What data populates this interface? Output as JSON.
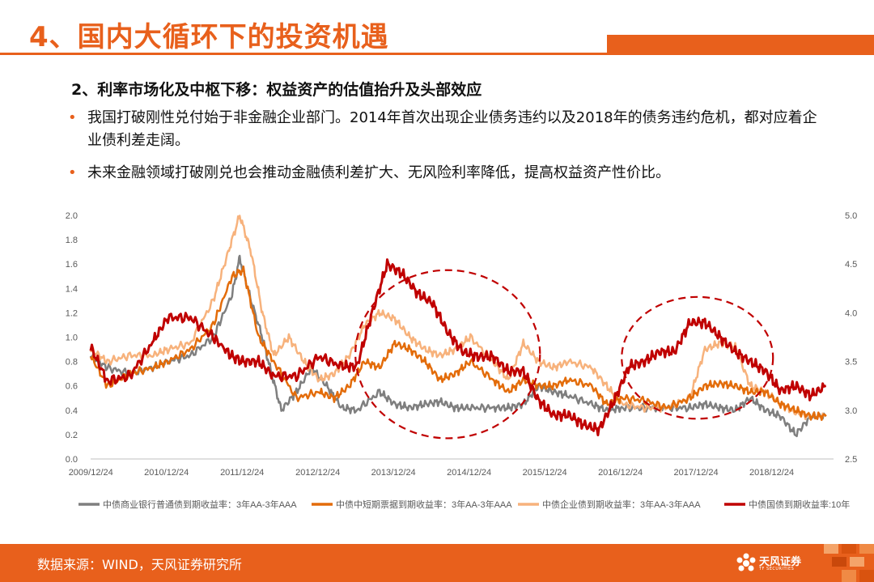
{
  "slide": {
    "title": "4、国内大循环下的投资机遇",
    "subtitle": "2、利率市场化及中枢下移：权益资产的估值抬升及头部效应",
    "bullets": [
      "我国打破刚性兑付始于非金融企业部门。2014年首次出现企业债务违约以及2018年的债务违约危机，都对应着企业债利差走阔。",
      "未来金融领域打破刚兑也会推动金融债利差扩大、无风险利率降低，提高权益资产性价比。"
    ],
    "source": "数据来源：WIND，天风证券研究所",
    "logo_text": "天风证券",
    "logo_sub": "TF SECURITIES",
    "colors": {
      "accent": "#e8601c",
      "gray": "#7f7f7f",
      "orange": "#e36c0a",
      "peach": "#f7b27c",
      "red": "#c00000"
    }
  },
  "chart_data": {
    "type": "line",
    "x_tick_labels": [
      "2009/12/24",
      "2010/12/24",
      "2011/12/24",
      "2012/12/24",
      "2013/12/24",
      "2014/12/24",
      "2015/12/24",
      "2016/12/24",
      "2017/12/24",
      "2018/12/24"
    ],
    "y_left_ticks": [
      "0.0",
      "0.2",
      "0.4",
      "0.6",
      "0.8",
      "1.0",
      "1.2",
      "1.4",
      "1.6",
      "1.8",
      "2.0"
    ],
    "y_right_ticks": [
      "2.5",
      "3.0",
      "3.5",
      "4.0",
      "4.5",
      "5.0"
    ],
    "ylim_left": [
      0,
      2.0
    ],
    "ylim_right": [
      2.5,
      5.0
    ],
    "xlim": [
      2009.98,
      2019.8
    ],
    "grid": false,
    "legend_position": "bottom",
    "annotations": [
      "dashed ellipse around 2013-2015 spread widening",
      "dashed ellipse around 2017-2018 spread widening"
    ],
    "ellipses": [
      {
        "cx": 2014.7,
        "cy_left": 0.86,
        "rx_years": 1.22,
        "ry": 0.69
      },
      {
        "cx": 2018.0,
        "cy_left": 0.83,
        "rx_years": 1.0,
        "ry": 0.5
      }
    ],
    "series": [
      {
        "name": "中债商业银行普通债到期收益率：3年AA-3年AAA",
        "axis": "left",
        "color": "#7f7f7f",
        "x": [
          2009.98,
          2010.2,
          2010.5,
          2010.8,
          2011.0,
          2011.3,
          2011.6,
          2011.85,
          2011.95,
          2012.1,
          2012.25,
          2012.35,
          2012.5,
          2012.7,
          2012.9,
          2013.1,
          2013.3,
          2013.5,
          2013.8,
          2014.0,
          2014.2,
          2014.4,
          2014.6,
          2014.8,
          2015.0,
          2015.3,
          2015.5,
          2015.7,
          2015.9,
          2016.1,
          2016.3,
          2016.6,
          2016.8,
          2017.0,
          2017.3,
          2017.6,
          2017.9,
          2018.1,
          2018.3,
          2018.5,
          2018.7,
          2018.9,
          2019.1,
          2019.3,
          2019.5,
          2019.7
        ],
        "values": [
          0.85,
          0.75,
          0.7,
          0.75,
          0.8,
          0.85,
          1.0,
          1.35,
          1.65,
          1.3,
          1.0,
          0.75,
          0.4,
          0.55,
          0.75,
          0.6,
          0.42,
          0.4,
          0.55,
          0.45,
          0.42,
          0.45,
          0.47,
          0.42,
          0.42,
          0.42,
          0.42,
          0.45,
          0.6,
          0.55,
          0.52,
          0.45,
          0.4,
          0.42,
          0.42,
          0.42,
          0.42,
          0.45,
          0.42,
          0.4,
          0.5,
          0.4,
          0.35,
          0.2,
          0.35,
          0.35
        ]
      },
      {
        "name": "中债中短期票据到期收益率：3年AA-3年AAA",
        "axis": "left",
        "color": "#e36c0a",
        "x": [
          2009.98,
          2010.2,
          2010.5,
          2010.8,
          2011.0,
          2011.3,
          2011.6,
          2011.85,
          2012.0,
          2012.2,
          2012.4,
          2012.7,
          2013.0,
          2013.2,
          2013.4,
          2013.6,
          2013.8,
          2014.0,
          2014.2,
          2014.4,
          2014.6,
          2014.8,
          2015.0,
          2015.3,
          2015.5,
          2015.7,
          2015.9,
          2016.1,
          2016.3,
          2016.6,
          2016.8,
          2017.0,
          2017.3,
          2017.6,
          2017.9,
          2018.1,
          2018.3,
          2018.5,
          2018.7,
          2018.9,
          2019.1,
          2019.3,
          2019.5,
          2019.7
        ],
        "values": [
          0.85,
          0.6,
          0.7,
          0.75,
          0.8,
          0.9,
          1.1,
          1.5,
          1.55,
          1.0,
          0.8,
          0.5,
          0.55,
          0.5,
          0.6,
          0.8,
          0.75,
          0.95,
          0.9,
          0.8,
          0.65,
          0.7,
          0.8,
          0.65,
          0.55,
          0.65,
          0.6,
          0.6,
          0.65,
          0.6,
          0.45,
          0.5,
          0.48,
          0.42,
          0.5,
          0.6,
          0.62,
          0.6,
          0.55,
          0.55,
          0.45,
          0.4,
          0.35,
          0.35
        ]
      },
      {
        "name": "中债企业债到期收益率：3年AA-3年AAA",
        "axis": "left",
        "color": "#f7b27c",
        "x": [
          2009.98,
          2010.2,
          2010.5,
          2010.8,
          2011.0,
          2011.3,
          2011.6,
          2011.8,
          2011.95,
          2012.1,
          2012.25,
          2012.4,
          2012.6,
          2012.8,
          2013.0,
          2013.2,
          2013.4,
          2013.6,
          2013.8,
          2014.0,
          2014.2,
          2014.4,
          2014.6,
          2014.8,
          2015.0,
          2015.3,
          2015.5,
          2015.7,
          2015.9,
          2016.1,
          2016.3,
          2016.6,
          2016.8,
          2017.0,
          2017.3,
          2017.6,
          2017.9,
          2018.1,
          2018.3,
          2018.5,
          2018.7,
          2018.9,
          2019.1,
          2019.3,
          2019.5,
          2019.7
        ],
        "values": [
          0.9,
          0.8,
          0.85,
          0.85,
          0.9,
          0.95,
          1.3,
          1.7,
          2.0,
          1.7,
          1.2,
          0.85,
          1.0,
          0.8,
          0.65,
          0.7,
          0.85,
          1.1,
          1.2,
          1.15,
          1.0,
          0.9,
          0.85,
          0.9,
          1.0,
          0.8,
          0.65,
          0.95,
          0.8,
          0.75,
          0.8,
          0.75,
          0.6,
          0.45,
          0.42,
          0.42,
          0.5,
          0.9,
          0.95,
          0.92,
          0.6,
          0.55,
          0.45,
          0.38,
          0.35,
          0.35
        ]
      },
      {
        "name": "中债国债到期收益率:10年",
        "axis": "right",
        "color": "#c00000",
        "x": [
          2009.98,
          2010.2,
          2010.5,
          2010.8,
          2011.0,
          2011.3,
          2011.6,
          2011.85,
          2012.0,
          2012.2,
          2012.4,
          2012.7,
          2013.0,
          2013.3,
          2013.5,
          2013.7,
          2013.9,
          2014.1,
          2014.3,
          2014.5,
          2014.7,
          2014.9,
          2015.1,
          2015.3,
          2015.5,
          2015.7,
          2015.9,
          2016.1,
          2016.3,
          2016.5,
          2016.7,
          2016.9,
          2017.1,
          2017.3,
          2017.5,
          2017.7,
          2017.9,
          2018.1,
          2018.3,
          2018.5,
          2018.7,
          2018.9,
          2019.1,
          2019.3,
          2019.5,
          2019.7
        ],
        "values": [
          3.65,
          3.3,
          3.35,
          3.7,
          3.95,
          3.95,
          3.75,
          3.55,
          3.5,
          3.5,
          3.35,
          3.35,
          3.55,
          3.45,
          3.45,
          4.0,
          4.5,
          4.4,
          4.2,
          4.1,
          3.8,
          3.6,
          3.55,
          3.55,
          3.4,
          3.4,
          3.1,
          2.95,
          2.95,
          2.85,
          2.8,
          3.1,
          3.45,
          3.5,
          3.6,
          3.6,
          3.9,
          3.9,
          3.75,
          3.6,
          3.5,
          3.4,
          3.2,
          3.25,
          3.15,
          3.25
        ]
      }
    ]
  }
}
